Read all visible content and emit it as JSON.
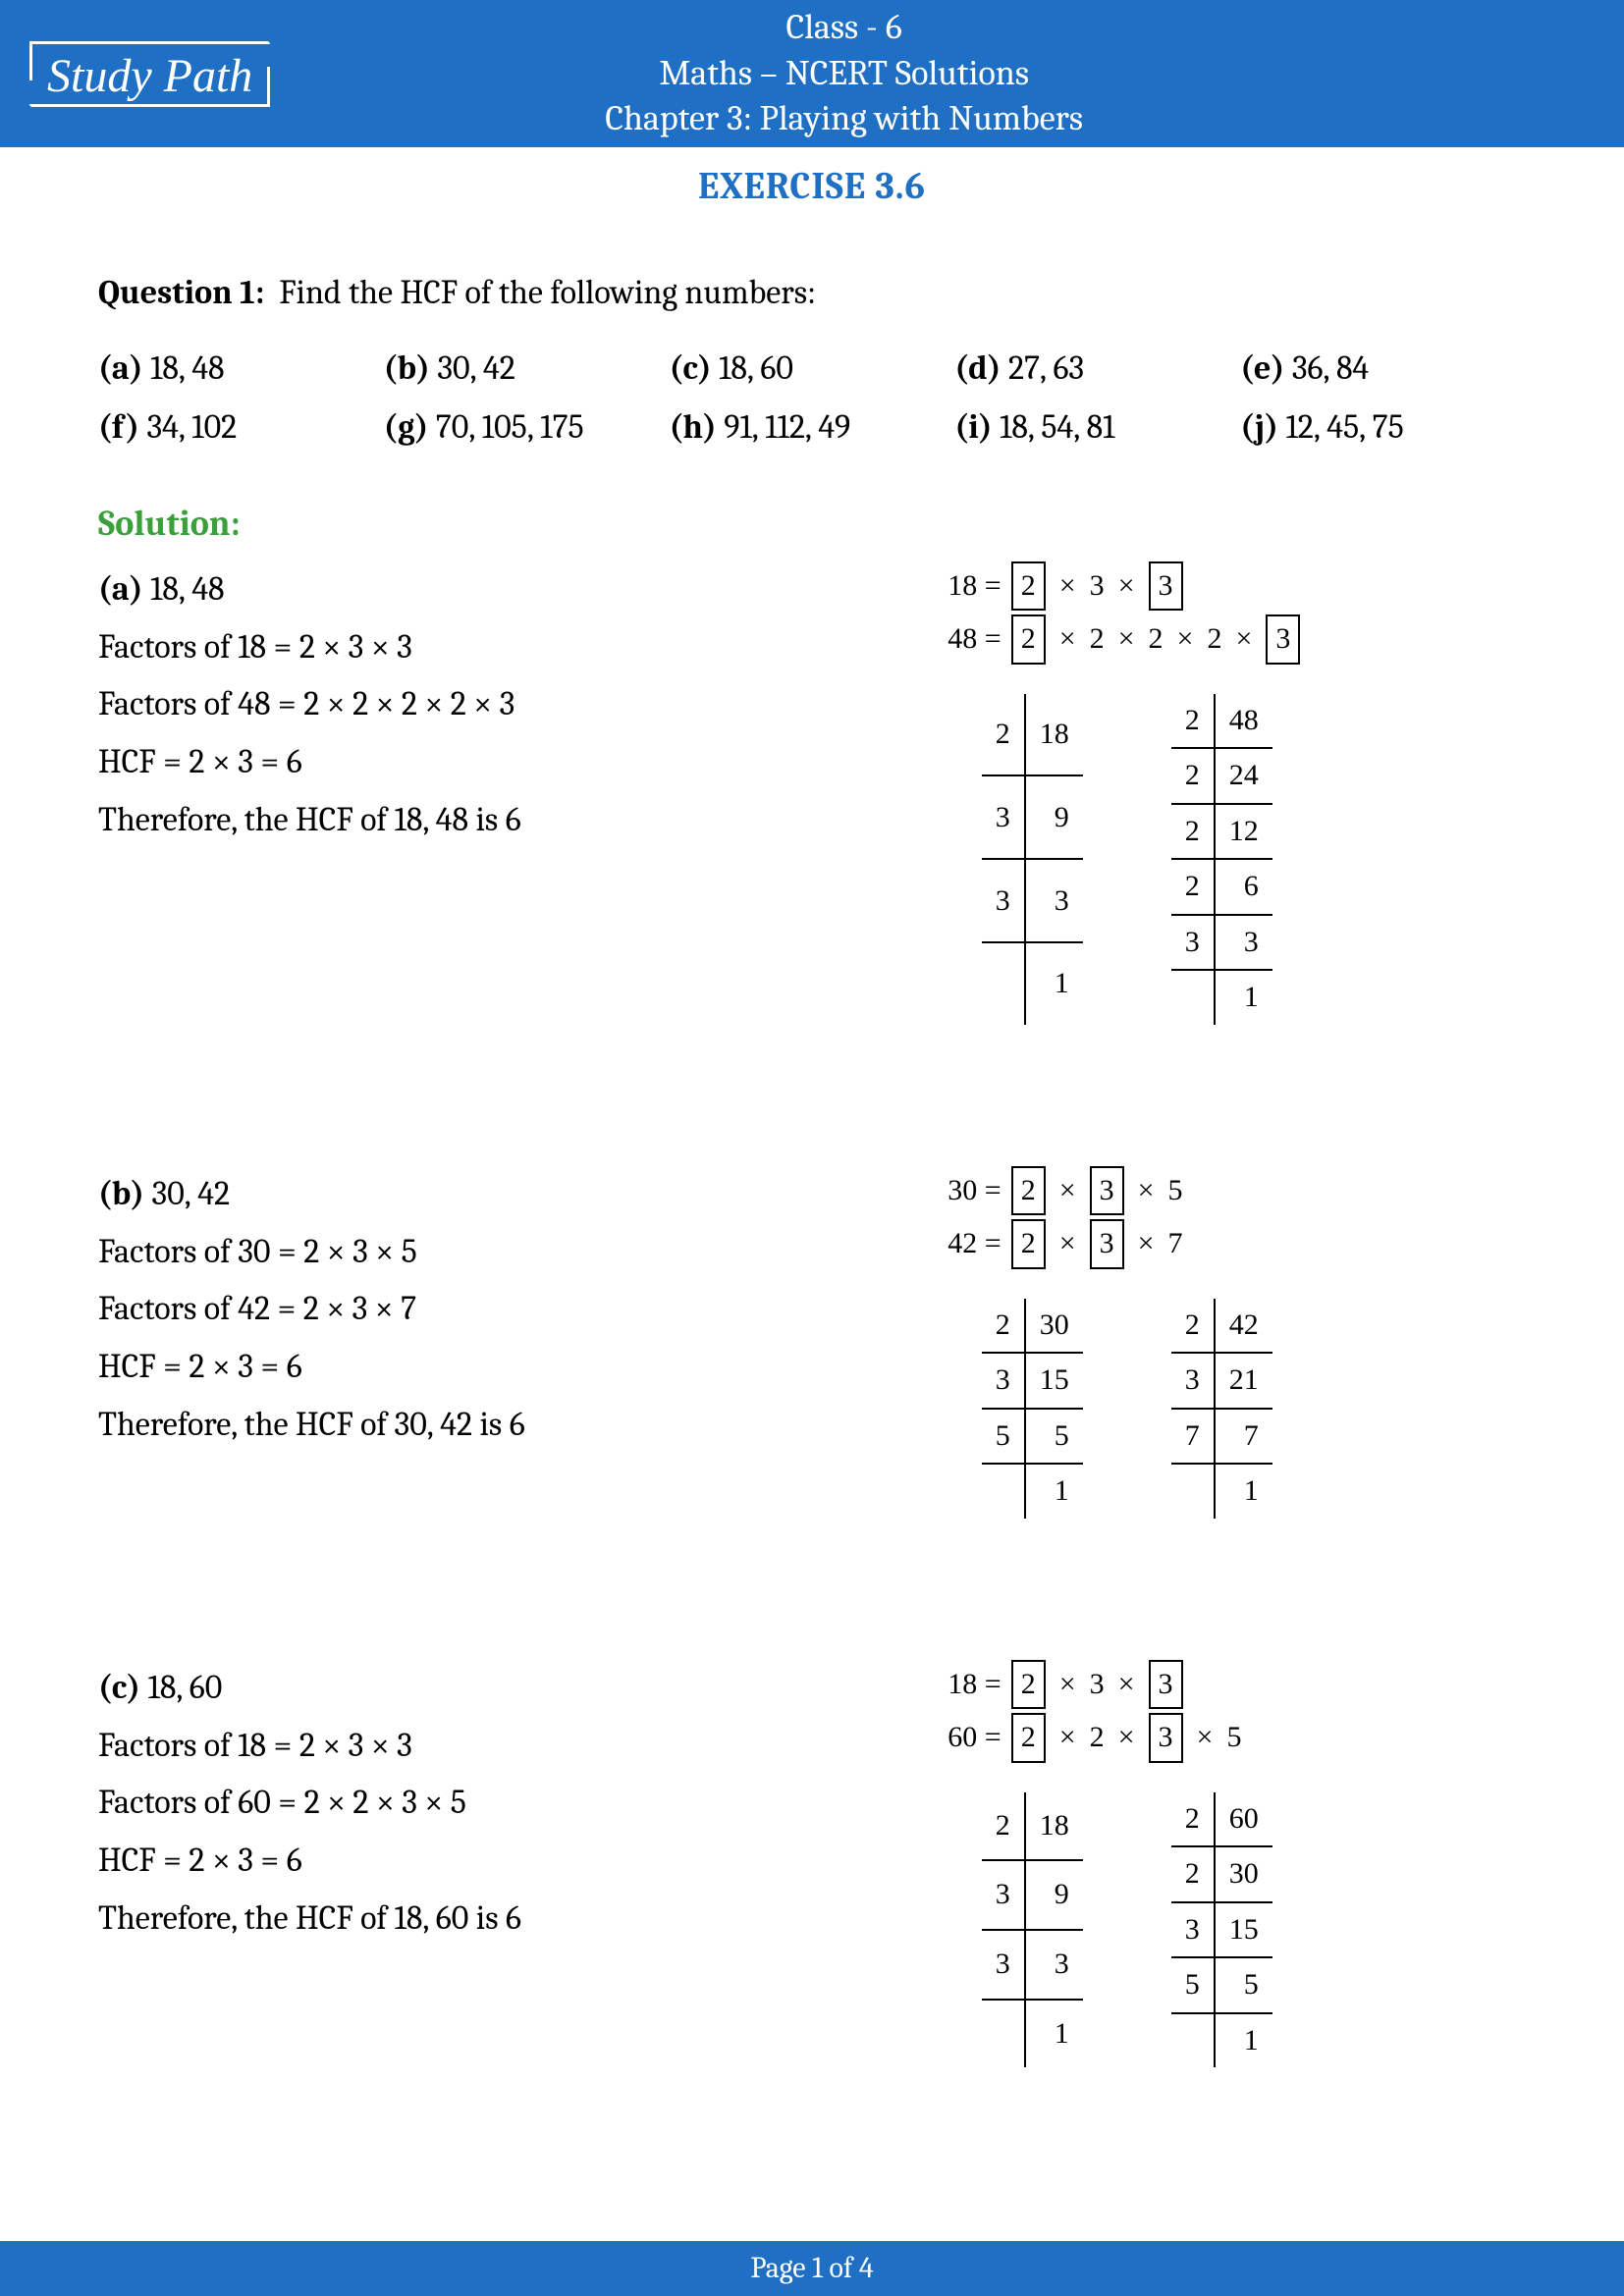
{
  "header": {
    "logo_text": "Study Path",
    "line1": "Class - 6",
    "line2": "Maths – NCERT Solutions",
    "line3": "Chapter 3: Playing with Numbers"
  },
  "exercise_title": "EXERCISE 3.6",
  "question": {
    "label": "Question 1:",
    "text": "Find the HCF of the following numbers:",
    "options": [
      {
        "k": "(a)",
        "v": "18, 48"
      },
      {
        "k": "(b)",
        "v": "30, 42"
      },
      {
        "k": "(c)",
        "v": "18, 60"
      },
      {
        "k": "(d)",
        "v": "27, 63"
      },
      {
        "k": "(e)",
        "v": "36, 84"
      },
      {
        "k": "(f)",
        "v": "34, 102"
      },
      {
        "k": "(g)",
        "v": "70, 105, 175"
      },
      {
        "k": "(h)",
        "v": "91, 112, 49"
      },
      {
        "k": "(i)",
        "v": "18, 54, 81"
      },
      {
        "k": "(j)",
        "v": "12, 45, 75"
      }
    ]
  },
  "solution_label": "Solution:",
  "solutions": [
    {
      "key": "(a)",
      "pair": "18, 48",
      "lines": [
        "Factors of 18 = 2 × 3 × 3",
        "Factors of 48 = 2 × 2 × 2 × 2 × 3",
        "HCF = 2 × 3 = 6",
        "Therefore, the HCF of 18, 48 is 6"
      ],
      "prime": [
        {
          "lhs": "18 =",
          "parts": [
            {
              "t": "2",
              "b": true
            },
            {
              "t": "×"
            },
            {
              "t": "3"
            },
            {
              "t": "×"
            },
            {
              "t": "3",
              "b": true
            }
          ]
        },
        {
          "lhs": "48 =",
          "parts": [
            {
              "t": "2",
              "b": true
            },
            {
              "t": "×"
            },
            {
              "t": "2"
            },
            {
              "t": "×"
            },
            {
              "t": "2"
            },
            {
              "t": "×"
            },
            {
              "t": "2"
            },
            {
              "t": "×"
            },
            {
              "t": "3",
              "b": true
            }
          ]
        }
      ],
      "tables": [
        [
          [
            "2",
            "18"
          ],
          [
            "3",
            "9"
          ],
          [
            "3",
            "3"
          ],
          [
            "",
            "1"
          ]
        ],
        [
          [
            "2",
            "48"
          ],
          [
            "2",
            "24"
          ],
          [
            "2",
            "12"
          ],
          [
            "2",
            "6"
          ],
          [
            "3",
            "3"
          ],
          [
            "",
            "1"
          ]
        ]
      ]
    },
    {
      "key": "(b)",
      "pair": "30, 42",
      "lines": [
        "Factors of 30 = 2 × 3 × 5",
        "Factors of 42 = 2 × 3 × 7",
        "HCF = 2 × 3 = 6",
        "Therefore, the HCF of 30, 42 is 6"
      ],
      "prime": [
        {
          "lhs": "30 =",
          "parts": [
            {
              "t": "2",
              "b": true
            },
            {
              "t": "×"
            },
            {
              "t": "3",
              "b": true
            },
            {
              "t": "×"
            },
            {
              "t": "5"
            }
          ]
        },
        {
          "lhs": "42 =",
          "parts": [
            {
              "t": "2",
              "b": true
            },
            {
              "t": "×"
            },
            {
              "t": "3",
              "b": true
            },
            {
              "t": "×"
            },
            {
              "t": "7"
            }
          ]
        }
      ],
      "tables": [
        [
          [
            "2",
            "30"
          ],
          [
            "3",
            "15"
          ],
          [
            "5",
            "5"
          ],
          [
            "",
            "1"
          ]
        ],
        [
          [
            "2",
            "42"
          ],
          [
            "3",
            "21"
          ],
          [
            "7",
            "7"
          ],
          [
            "",
            "1"
          ]
        ]
      ]
    },
    {
      "key": "(c)",
      "pair": "18, 60",
      "lines": [
        "Factors of 18 = 2 × 3 × 3",
        "Factors of 60 = 2 × 2 × 3 × 5",
        "HCF = 2 × 3 = 6",
        "Therefore, the HCF of 18, 60 is 6"
      ],
      "prime": [
        {
          "lhs": "18 =",
          "parts": [
            {
              "t": "2",
              "b": true
            },
            {
              "t": "×"
            },
            {
              "t": "3"
            },
            {
              "t": "×"
            },
            {
              "t": "3",
              "b": true
            }
          ]
        },
        {
          "lhs": "60 =",
          "parts": [
            {
              "t": "2",
              "b": true
            },
            {
              "t": "×"
            },
            {
              "t": "2"
            },
            {
              "t": "×"
            },
            {
              "t": "3",
              "b": true
            },
            {
              "t": "×"
            },
            {
              "t": "5"
            }
          ]
        }
      ],
      "tables": [
        [
          [
            "2",
            "18"
          ],
          [
            "3",
            "9"
          ],
          [
            "3",
            "3"
          ],
          [
            "",
            "1"
          ]
        ],
        [
          [
            "2",
            "60"
          ],
          [
            "2",
            "30"
          ],
          [
            "3",
            "15"
          ],
          [
            "5",
            "5"
          ],
          [
            "",
            "1"
          ]
        ]
      ]
    }
  ],
  "footer": {
    "page": "Page 1 of 4"
  },
  "colors": {
    "brand_blue": "#1f6fc4",
    "solution_green": "#3aa13a",
    "text": "#000000",
    "bg": "#ffffff"
  },
  "typography": {
    "body_font": "Cambria, Georgia, serif",
    "body_size_pt": 26,
    "header_size_pt": 27,
    "exercise_title_size_pt": 29
  }
}
